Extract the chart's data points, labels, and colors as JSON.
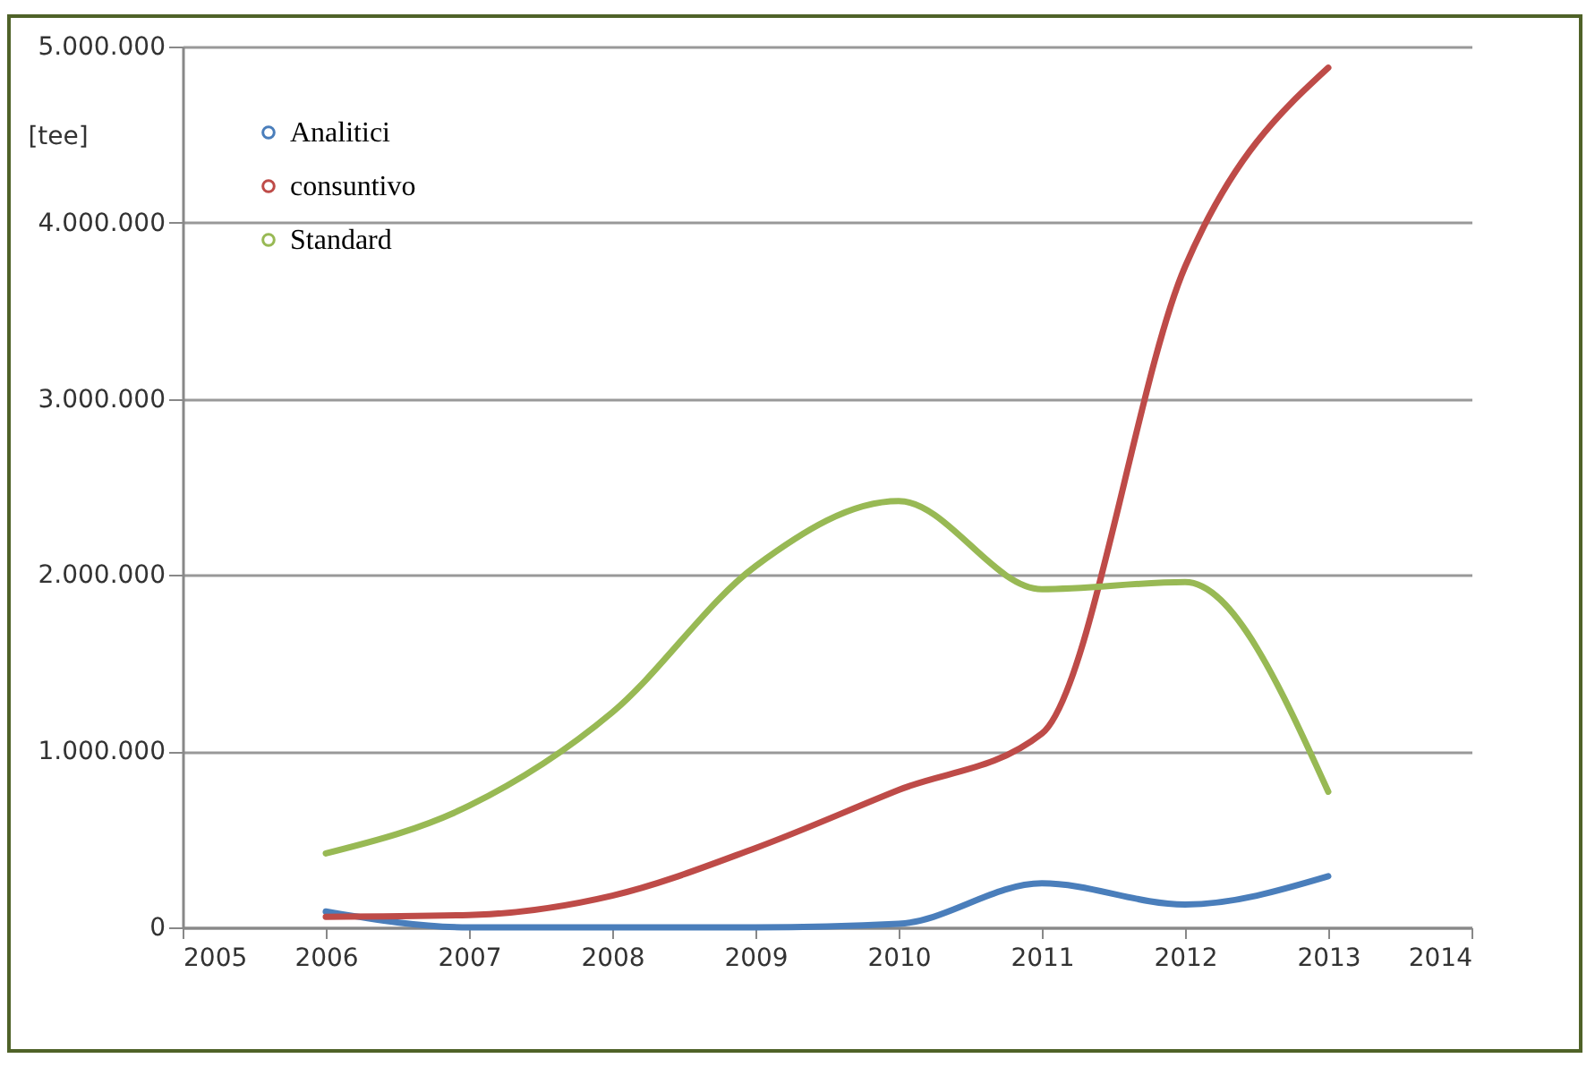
{
  "chart_data": {
    "type": "line",
    "ylabel": "[tee]",
    "x": [
      2006,
      2007,
      2008,
      2009,
      2010,
      2011,
      2012,
      2013
    ],
    "series": [
      {
        "name": "Analitici",
        "color": "#4a7ebb",
        "values": [
          90000,
          0,
          0,
          0,
          20000,
          250000,
          130000,
          290000
        ]
      },
      {
        "name": "consuntivo",
        "color": "#be4b48",
        "values": [
          60000,
          70000,
          180000,
          450000,
          780000,
          1100000,
          3750000,
          4880000
        ]
      },
      {
        "name": "Standard",
        "color": "#98b954",
        "values": [
          420000,
          690000,
          1220000,
          2050000,
          2420000,
          1920000,
          1960000,
          770000
        ]
      }
    ],
    "xlim": [
      2005,
      2014
    ],
    "xticks": [
      2005,
      2006,
      2007,
      2008,
      2009,
      2010,
      2011,
      2012,
      2013,
      2014
    ],
    "ylim": [
      0,
      5000000
    ],
    "yticks": [
      0,
      {
        "value": 1000000,
        "label": "1.000.000"
      },
      {
        "value": 2000000,
        "label": "2.000.000"
      },
      {
        "value": 3000000,
        "label": "3.000.000"
      },
      {
        "value": 4000000,
        "label": "4.000.000"
      },
      {
        "value": 5000000,
        "label": "5.000.000"
      }
    ],
    "grid": "y",
    "legend": "top left",
    "marker": "none",
    "line_style": "solid"
  }
}
